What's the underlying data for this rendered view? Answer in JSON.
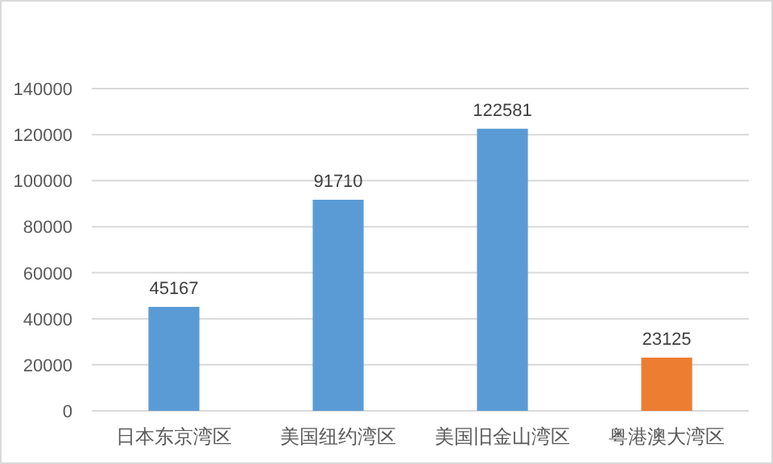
{
  "chart_data": {
    "type": "bar",
    "categories": [
      "日本东京湾区",
      "美国纽约湾区",
      "美国旧金山湾区",
      "粤港澳大湾区"
    ],
    "values": [
      45167,
      91710,
      122581,
      23125
    ],
    "colors": [
      "#5b9bd5",
      "#5b9bd5",
      "#5b9bd5",
      "#ed7d31"
    ],
    "ylim": [
      0,
      140000
    ],
    "yticks": [
      0,
      20000,
      40000,
      60000,
      80000,
      100000,
      120000,
      140000
    ],
    "grid": "y",
    "data_labels": true
  }
}
